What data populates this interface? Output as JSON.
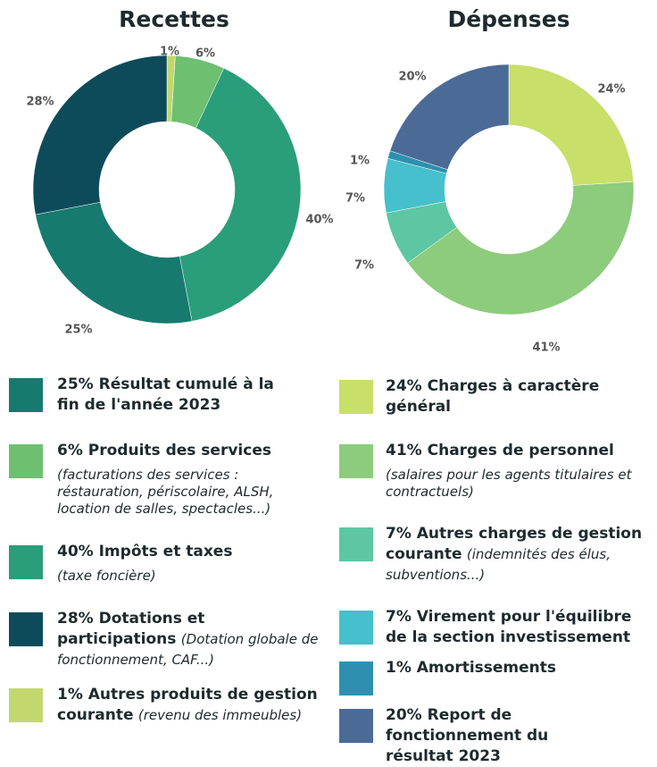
{
  "chart_data": [
    {
      "type": "donut",
      "title": "Recettes",
      "categories": [
        "1%  Autres produits de gestion courante",
        "6% Produits des services",
        "40% Impôts et taxes",
        "25% Résultat cumulé à la fin de l'année 2023",
        "28% Dotations et participations"
      ],
      "notes": [
        "(revenu des immeubles)",
        "(facturations des services : réstauration, périscolaire, ALSH, location de salles, spectacles...)",
        "(taxe foncière)",
        null,
        "(Dotation globale de fonctionnement, CAF...)"
      ],
      "values": [
        1,
        6,
        40,
        25,
        28
      ],
      "value_labels": [
        "1%",
        "6%",
        "40%",
        "25%",
        "28%"
      ],
      "colors": [
        "#c2d86e",
        "#6cc070",
        "#2a9d7a",
        "#177a6f",
        "#0e4b5a"
      ]
    },
    {
      "type": "donut",
      "title": "Dépenses",
      "categories": [
        "24% Charges à caractère général",
        "41% Charges de personnel",
        "7% Autres charges de gestion courante",
        "7% Virement pour l'équilibre de la section investissement",
        "1% Amortissements",
        "20% Report de fonctionnement du résultat 2023"
      ],
      "notes": [
        null,
        "(salaires pour les agents titulaires et contractuels)",
        "(indemnités des élus, subventions...)",
        null,
        null,
        null
      ],
      "values": [
        24,
        41,
        7,
        7,
        1,
        20
      ],
      "value_labels": [
        "24%",
        "41%",
        "7%",
        "7%",
        "1%",
        "20%"
      ],
      "colors": [
        "#c8df6a",
        "#8ccc7c",
        "#5cc7a2",
        "#45c0cc",
        "#2f8fb0",
        "#4b6b96"
      ]
    }
  ]
}
